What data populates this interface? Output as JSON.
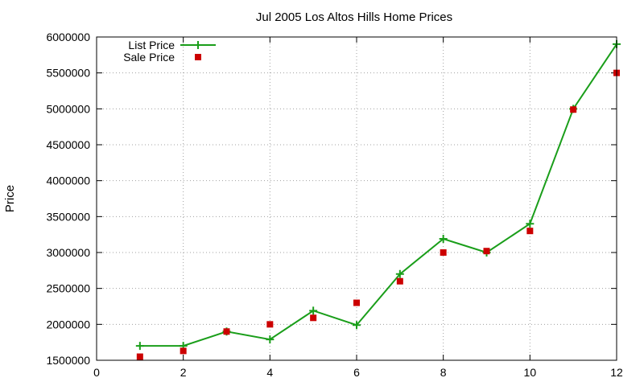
{
  "chart_data": {
    "type": "line",
    "title": "Jul 2005 Los Altos Hills Home Prices",
    "xlabel": "",
    "ylabel": "Price",
    "xlim": [
      0,
      12
    ],
    "ylim": [
      1500000,
      6000000
    ],
    "x_ticks": [
      0,
      2,
      4,
      6,
      8,
      10,
      12
    ],
    "y_ticks": [
      1500000,
      2000000,
      2500000,
      3000000,
      3500000,
      4000000,
      4500000,
      5000000,
      5500000,
      6000000
    ],
    "grid": true,
    "legend_position": "top-left",
    "series": [
      {
        "name": "List Price",
        "style": "line-with-plus-markers",
        "color": "#1a9e1a",
        "x": [
          1,
          2,
          3,
          4,
          5,
          6,
          7,
          8,
          9,
          10,
          11,
          12
        ],
        "values": [
          1700000,
          1700000,
          1900000,
          1790000,
          2190000,
          1990000,
          2700000,
          3190000,
          3000000,
          3400000,
          5000000,
          5900000
        ]
      },
      {
        "name": "Sale Price",
        "style": "square-markers",
        "color": "#cc0000",
        "x": [
          1,
          2,
          3,
          4,
          5,
          6,
          7,
          8,
          9,
          10,
          11,
          12
        ],
        "values": [
          1550000,
          1630000,
          1900000,
          2000000,
          2090000,
          2300000,
          2600000,
          3000000,
          3020000,
          3300000,
          4990000,
          5500000
        ]
      }
    ]
  }
}
